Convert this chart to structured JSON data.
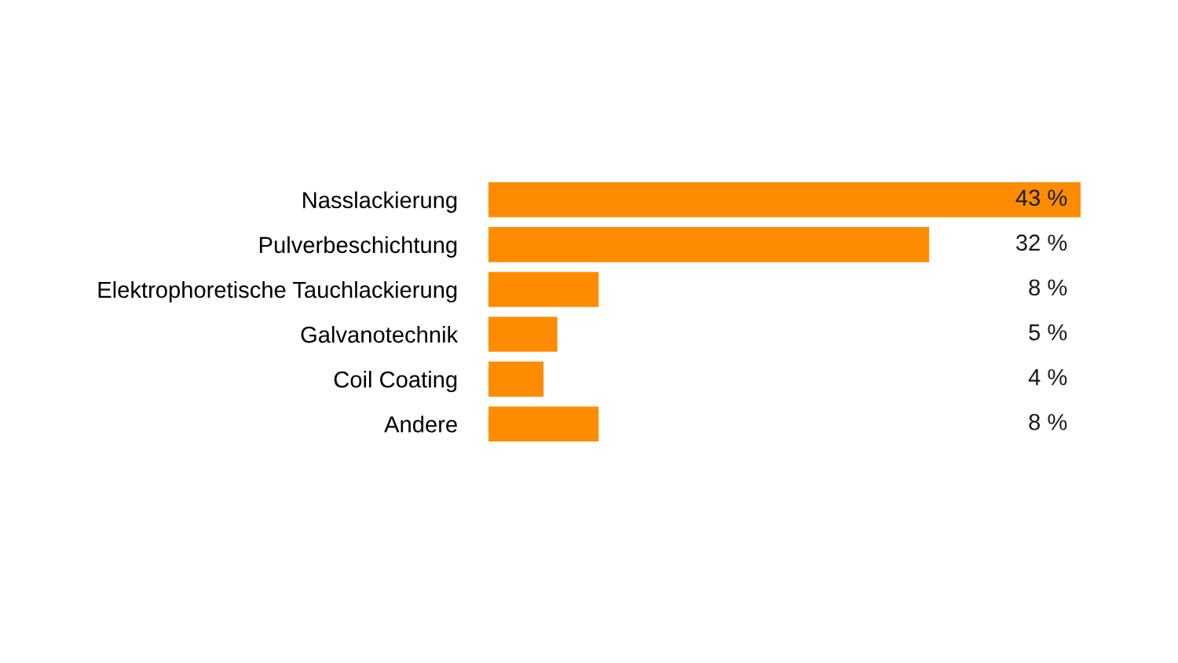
{
  "chart_data": {
    "type": "bar",
    "orientation": "horizontal",
    "categories": [
      "Nasslackierung",
      "Pulverbeschichtung",
      "Elektrophoretische Tauchlackierung",
      "Galvanotechnik",
      "Coil Coating",
      "Andere"
    ],
    "values": [
      43,
      32,
      8,
      5,
      4,
      8
    ],
    "value_labels": [
      "43 %",
      "32 %",
      "8 %",
      "5 %",
      "4 %",
      "8 %"
    ],
    "color": "#ff8c00"
  }
}
